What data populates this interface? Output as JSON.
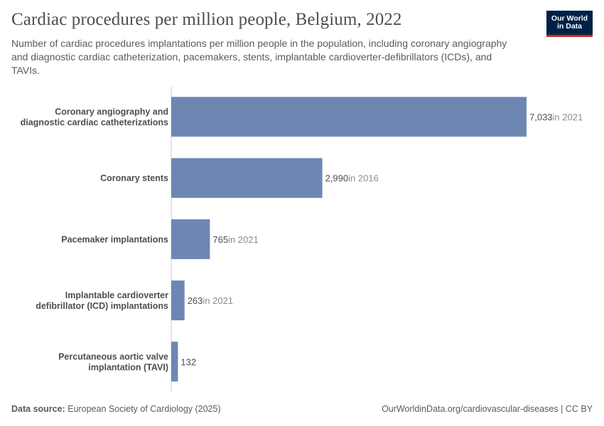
{
  "header": {
    "title": "Cardiac procedures per million people, Belgium, 2022",
    "subtitle": "Number of cardiac procedures implantations per million people in the population, including coronary angiography and diagnostic cardiac catheterization, pacemakers, stents, implantable cardioverter-defibrillators (ICDs), and TAVIs."
  },
  "logo": {
    "line1": "Our World",
    "line2": "in Data"
  },
  "footer": {
    "source_label": "Data source:",
    "source_text": "European Society of Cardiology (2025)",
    "url": "OurWorldinData.org/cardiovascular-diseases",
    "separator": "|",
    "license": "CC BY"
  },
  "colors": {
    "bar": "#6d87b2",
    "label": "#4e4e4e",
    "value": "#4e4e4e",
    "year": "#8c8c8c",
    "axis": "#cccccc"
  },
  "chart_data": {
    "type": "bar",
    "orientation": "horizontal",
    "title": "Cardiac procedures per million people, Belgium, 2022",
    "categories": [
      [
        "Coronary angiography and",
        "diagnostic cardiac catheterizations"
      ],
      [
        "Coronary stents"
      ],
      [
        "Pacemaker implantations"
      ],
      [
        "Implantable cardioverter",
        "defibrillator (ICD) implantations"
      ],
      [
        "Percutaneous aortic valve",
        "implantation (TAVI)"
      ]
    ],
    "values": [
      7033,
      2990,
      765,
      263,
      132
    ],
    "value_labels": [
      "7,033",
      "2,990",
      "765",
      "263",
      "132"
    ],
    "year_labels": [
      "in 2021",
      "in 2016",
      "in 2021",
      "in 2021",
      ""
    ],
    "xlim": [
      0,
      7033
    ],
    "xlabel": "",
    "ylabel": ""
  }
}
